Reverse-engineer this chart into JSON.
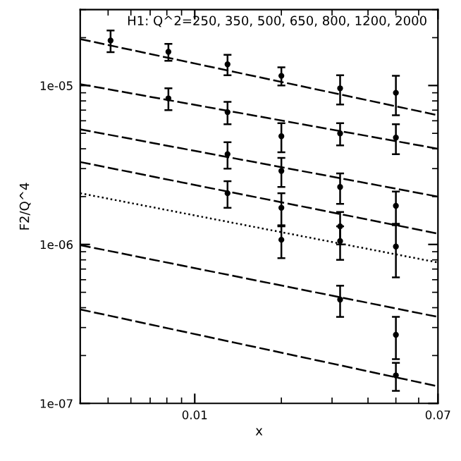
{
  "chart_data": {
    "type": "scatter",
    "title": "H1: Q^2=250, 350, 500, 650, 800, 1200, 2000",
    "xlabel": "x",
    "ylabel": "F2/Q^4",
    "log": "xy",
    "xlim": [
      0.004,
      0.07
    ],
    "ylim": [
      1e-07,
      3e-05
    ],
    "xticks": [
      0.01,
      0.07
    ],
    "yticks": [
      {
        "value": 1e-07,
        "label": "1e-07"
      },
      {
        "value": 1e-06,
        "label": "1e-06"
      },
      {
        "value": 1e-05,
        "label": "1e-05"
      }
    ],
    "marker": "circle",
    "grid": false,
    "legend": false,
    "series": [
      {
        "type": "line",
        "color": "#000000",
        "line_style": "dashed",
        "marker": "none",
        "x": [
          0.004,
          0.07
        ],
        "values": [
          1.96e-05,
          6.5e-06
        ]
      },
      {
        "type": "line",
        "color": "#000000",
        "line_style": "dashed",
        "marker": "none",
        "x": [
          0.004,
          0.07
        ],
        "values": [
          1.02e-05,
          4e-06
        ]
      },
      {
        "type": "line",
        "color": "#000000",
        "line_style": "dashed",
        "marker": "none",
        "x": [
          0.004,
          0.07
        ],
        "values": [
          5.3e-06,
          2e-06
        ]
      },
      {
        "type": "line",
        "color": "#000000",
        "line_style": "dashed",
        "marker": "none",
        "x": [
          0.004,
          0.07
        ],
        "values": [
          3.3e-06,
          1.17e-06
        ]
      },
      {
        "type": "line",
        "color": "#000000",
        "line_style": "dotted",
        "marker": "none",
        "x": [
          0.004,
          0.07
        ],
        "values": [
          2.1e-06,
          7.7e-07
        ]
      },
      {
        "type": "line",
        "color": "#000000",
        "line_style": "dashed",
        "marker": "none",
        "x": [
          0.004,
          0.07
        ],
        "values": [
          9.9e-07,
          3.5e-07
        ]
      },
      {
        "type": "line",
        "color": "#000000",
        "line_style": "dashed",
        "marker": "none",
        "x": [
          0.004,
          0.07
        ],
        "values": [
          3.9e-07,
          1.28e-07
        ]
      },
      {
        "color": "#000000",
        "x": [
          0.0051,
          0.0081,
          0.013,
          0.02,
          0.032,
          0.05
        ],
        "values": [
          1.92e-05,
          1.63e-05,
          1.36e-05,
          1.15e-05,
          9.6e-06,
          9e-06
        ],
        "errors": [
          3e-06,
          2e-06,
          2e-06,
          1.5e-06,
          2e-06,
          2.5e-06
        ]
      },
      {
        "color": "#000000",
        "x": [
          0.0081,
          0.013,
          0.02,
          0.032,
          0.05
        ],
        "values": [
          8.3e-06,
          6.8e-06,
          4.8e-06,
          5e-06,
          4.7e-06
        ],
        "errors": [
          1.3e-06,
          1.1e-06,
          1e-06,
          8e-07,
          1e-06
        ]
      },
      {
        "color": "#000000",
        "x": [
          0.013,
          0.02,
          0.032,
          0.05
        ],
        "values": [
          3.7e-06,
          2.9e-06,
          2.3e-06,
          1.75e-06
        ],
        "errors": [
          7e-07,
          6e-07,
          5e-07,
          4e-07
        ]
      },
      {
        "color": "#000000",
        "x": [
          0.013,
          0.02,
          0.032
        ],
        "values": [
          2.1e-06,
          1.7e-06,
          1.3e-06
        ],
        "errors": [
          4e-07,
          4e-07,
          3e-07
        ]
      },
      {
        "color": "#000000",
        "x": [
          0.02,
          0.032,
          0.05
        ],
        "values": [
          1.07e-06,
          1.05e-06,
          9.7e-07
        ],
        "errors": [
          2.5e-07,
          2.5e-07,
          3.5e-07
        ]
      },
      {
        "color": "#000000",
        "x": [
          0.032,
          0.05
        ],
        "values": [
          4.5e-07,
          2.7e-07
        ],
        "errors": [
          1e-07,
          8e-08
        ]
      },
      {
        "color": "#000000",
        "x": [
          0.05
        ],
        "values": [
          1.5e-07
        ],
        "errors": [
          3e-08
        ]
      }
    ]
  }
}
